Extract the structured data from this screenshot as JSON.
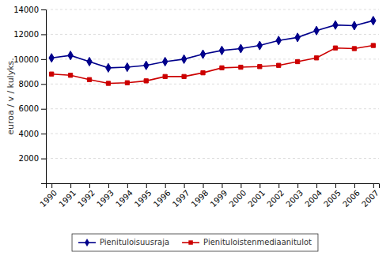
{
  "chart_data": {
    "type": "line",
    "x": [
      1990,
      1991,
      1992,
      1993,
      1994,
      1995,
      1996,
      1997,
      1998,
      1999,
      2000,
      2001,
      2002,
      2003,
      2004,
      2005,
      2006,
      2007
    ],
    "xlim": [
      1989.7,
      2007.3
    ],
    "xticks": [
      1990,
      1991,
      1992,
      1993,
      1994,
      1995,
      1996,
      1997,
      1998,
      1999,
      2000,
      2001,
      2002,
      2003,
      2004,
      2005,
      2006,
      2007
    ],
    "ylabel": "euroa / v / kulyks.",
    "ylim": [
      0,
      14000
    ],
    "yticks": [
      2000,
      4000,
      6000,
      8000,
      10000,
      12000,
      14000
    ],
    "grid": true,
    "legend": "bottom",
    "series": [
      {
        "name": "Pienituloisuusraja",
        "color": "#00008B",
        "marker": "diamond",
        "values": [
          10100,
          10300,
          9800,
          9300,
          9350,
          9500,
          9800,
          10000,
          10400,
          10700,
          10850,
          11100,
          11500,
          11750,
          12300,
          12750,
          12700,
          13100
        ]
      },
      {
        "name": "Pienituloistenmediaanitulot",
        "color": "#CC0000",
        "marker": "square",
        "values": [
          8800,
          8700,
          8350,
          8050,
          8100,
          8250,
          8600,
          8600,
          8900,
          9300,
          9350,
          9400,
          9500,
          9800,
          10100,
          10900,
          10850,
          11100
        ]
      }
    ]
  }
}
